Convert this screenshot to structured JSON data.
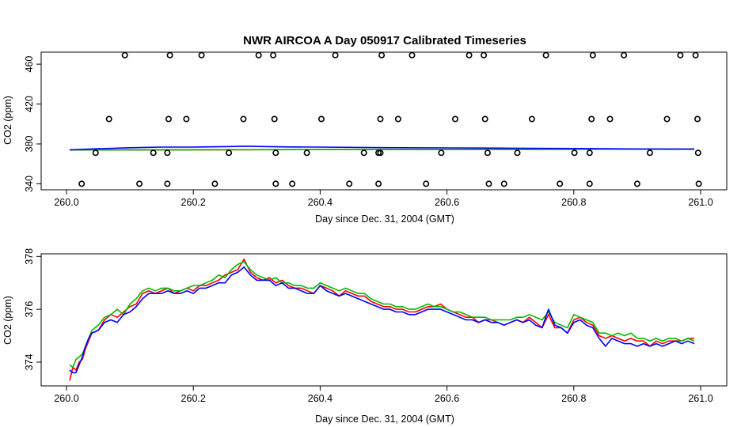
{
  "chart_data": [
    {
      "type": "scatter",
      "title": "NWR AIRCOA A  Day 050917  Calibrated Timeseries",
      "xlabel": "Day since Dec. 31, 2004 (GMT)",
      "ylabel": "CO2 (ppm)",
      "xlim": [
        260.0,
        261.0
      ],
      "ylim": [
        334,
        472
      ],
      "x_ticks": [
        260.0,
        260.2,
        260.4,
        260.6,
        260.8,
        261.0
      ],
      "x_tick_labels": [
        "260.0",
        "260.2",
        "260.4",
        "260.6",
        "260.8",
        "261.0"
      ],
      "y_ticks": [
        340,
        380,
        420,
        460
      ],
      "y_tick_labels": [
        "340",
        "380",
        "420",
        "460"
      ],
      "points": [
        [
          260.092,
          469
        ],
        [
          260.163,
          469
        ],
        [
          260.213,
          469
        ],
        [
          260.303,
          469
        ],
        [
          260.326,
          469
        ],
        [
          260.424,
          469
        ],
        [
          260.497,
          469
        ],
        [
          260.545,
          469
        ],
        [
          260.635,
          469
        ],
        [
          260.658,
          469
        ],
        [
          260.756,
          469
        ],
        [
          260.83,
          469
        ],
        [
          260.879,
          469
        ],
        [
          260.968,
          469
        ],
        [
          260.992,
          469
        ],
        [
          260.067,
          405
        ],
        [
          260.161,
          405
        ],
        [
          260.189,
          405
        ],
        [
          260.279,
          405
        ],
        [
          260.328,
          405
        ],
        [
          260.402,
          405
        ],
        [
          260.495,
          405
        ],
        [
          260.523,
          405
        ],
        [
          260.613,
          405
        ],
        [
          260.66,
          405
        ],
        [
          260.734,
          405
        ],
        [
          260.828,
          405
        ],
        [
          260.857,
          405
        ],
        [
          260.947,
          405
        ],
        [
          260.995,
          405
        ],
        [
          260.046,
          371
        ],
        [
          260.137,
          371
        ],
        [
          260.159,
          371
        ],
        [
          260.256,
          371
        ],
        [
          260.33,
          371
        ],
        [
          260.379,
          371
        ],
        [
          260.469,
          371
        ],
        [
          260.492,
          371
        ],
        [
          260.495,
          371
        ],
        [
          260.591,
          371
        ],
        [
          260.664,
          371
        ],
        [
          260.711,
          371
        ],
        [
          260.801,
          371
        ],
        [
          260.825,
          371
        ],
        [
          260.92,
          371
        ],
        [
          260.996,
          371
        ],
        [
          260.024,
          340
        ],
        [
          260.115,
          340
        ],
        [
          260.159,
          340
        ],
        [
          260.234,
          340
        ],
        [
          260.33,
          340
        ],
        [
          260.356,
          340
        ],
        [
          260.446,
          340
        ],
        [
          260.492,
          340
        ],
        [
          260.567,
          340
        ],
        [
          260.666,
          340
        ],
        [
          260.69,
          340
        ],
        [
          260.778,
          340
        ],
        [
          260.825,
          340
        ],
        [
          260.9,
          340
        ],
        [
          260.997,
          340
        ]
      ],
      "series": [
        {
          "name": "red",
          "color": "#ff0000",
          "x": [
            260.005,
            260.99
          ],
          "values": [
            374.0,
            374.8
          ]
        },
        {
          "name": "green",
          "color": "#00bb00",
          "x": [
            260.005,
            260.99
          ],
          "values": [
            374.0,
            374.8
          ]
        },
        {
          "name": "blue",
          "color": "#0000ff",
          "x": [
            260.005,
            260.05,
            260.1,
            260.15,
            260.2,
            260.25,
            260.28,
            260.35,
            260.4,
            260.5,
            260.6,
            260.7,
            260.8,
            260.9,
            260.99
          ],
          "values": [
            374.0,
            375.2,
            376.2,
            376.8,
            376.8,
            377.3,
            377.7,
            377.0,
            376.8,
            376.3,
            376.0,
            375.7,
            375.4,
            374.9,
            374.8
          ]
        }
      ]
    },
    {
      "type": "line",
      "title": "",
      "xlabel": "Day since Dec. 31, 2004 (GMT)",
      "ylabel": "CO2 (ppm)",
      "xlim": [
        260.0,
        261.0
      ],
      "ylim": [
        373.1,
        378.1
      ],
      "x_ticks": [
        260.0,
        260.2,
        260.4,
        260.6,
        260.8,
        261.0
      ],
      "x_tick_labels": [
        "260.0",
        "260.2",
        "260.4",
        "260.6",
        "260.8",
        "261.0"
      ],
      "y_ticks": [
        374,
        376,
        378
      ],
      "y_tick_labels": [
        "374",
        "376",
        "378"
      ],
      "series": [
        {
          "name": "red",
          "color": "#ff0000",
          "x": [
            260.005,
            260.01,
            260.015,
            260.02,
            260.025,
            260.03,
            260.035,
            260.04,
            260.05,
            260.06,
            260.07,
            260.08,
            260.09,
            260.1,
            260.11,
            260.12,
            260.13,
            260.14,
            260.15,
            260.16,
            260.17,
            260.18,
            260.19,
            260.2,
            260.21,
            260.22,
            260.23,
            260.24,
            260.25,
            260.26,
            260.27,
            260.28,
            260.29,
            260.3,
            260.31,
            260.32,
            260.33,
            260.34,
            260.35,
            260.36,
            260.37,
            260.38,
            260.39,
            260.4,
            260.41,
            260.42,
            260.43,
            260.44,
            260.45,
            260.46,
            260.47,
            260.48,
            260.49,
            260.5,
            260.51,
            260.52,
            260.53,
            260.54,
            260.55,
            260.56,
            260.57,
            260.58,
            260.59,
            260.6,
            260.61,
            260.62,
            260.63,
            260.64,
            260.65,
            260.66,
            260.67,
            260.68,
            260.69,
            260.7,
            260.71,
            260.72,
            260.73,
            260.74,
            260.75,
            260.76,
            260.77,
            260.78,
            260.79,
            260.8,
            260.81,
            260.82,
            260.83,
            260.84,
            260.85,
            260.86,
            260.87,
            260.88,
            260.89,
            260.9,
            260.91,
            260.92,
            260.93,
            260.94,
            260.95,
            260.96,
            260.97,
            260.98,
            260.99
          ],
          "values": [
            373.3,
            373.8,
            373.7,
            374.0,
            374.1,
            374.5,
            374.8,
            375.1,
            375.2,
            375.6,
            375.8,
            375.7,
            375.9,
            376.1,
            376.2,
            376.6,
            376.7,
            376.6,
            376.7,
            376.8,
            376.6,
            376.7,
            376.8,
            376.7,
            376.9,
            376.9,
            377.0,
            377.1,
            377.3,
            377.4,
            377.5,
            377.9,
            377.4,
            377.2,
            377.1,
            377.2,
            377.0,
            377.1,
            376.9,
            376.8,
            376.8,
            376.7,
            376.6,
            376.9,
            376.8,
            376.7,
            376.5,
            376.7,
            376.6,
            376.5,
            376.5,
            376.3,
            376.2,
            376.1,
            376.1,
            376.0,
            376.0,
            375.9,
            375.9,
            376.0,
            376.1,
            376.1,
            376.2,
            376.0,
            375.9,
            375.8,
            375.7,
            375.7,
            375.5,
            375.6,
            375.6,
            375.5,
            375.4,
            375.5,
            375.6,
            375.5,
            375.7,
            375.5,
            375.3,
            375.8,
            375.3,
            375.3,
            375.1,
            375.6,
            375.7,
            375.5,
            375.4,
            375.0,
            374.9,
            375.0,
            374.9,
            374.8,
            374.9,
            374.8,
            374.8,
            374.6,
            374.8,
            374.7,
            374.8,
            374.8,
            374.8,
            374.9,
            374.9
          ]
        },
        {
          "name": "green",
          "color": "#00bb00",
          "x": [
            260.005,
            260.01,
            260.015,
            260.02,
            260.025,
            260.03,
            260.035,
            260.04,
            260.05,
            260.06,
            260.07,
            260.08,
            260.09,
            260.1,
            260.11,
            260.12,
            260.13,
            260.14,
            260.15,
            260.16,
            260.17,
            260.18,
            260.19,
            260.2,
            260.21,
            260.22,
            260.23,
            260.24,
            260.25,
            260.26,
            260.27,
            260.28,
            260.29,
            260.3,
            260.31,
            260.32,
            260.33,
            260.34,
            260.35,
            260.36,
            260.37,
            260.38,
            260.39,
            260.4,
            260.41,
            260.42,
            260.43,
            260.44,
            260.45,
            260.46,
            260.47,
            260.48,
            260.49,
            260.5,
            260.51,
            260.52,
            260.53,
            260.54,
            260.55,
            260.56,
            260.57,
            260.58,
            260.59,
            260.6,
            260.61,
            260.62,
            260.63,
            260.64,
            260.65,
            260.66,
            260.67,
            260.68,
            260.69,
            260.7,
            260.71,
            260.72,
            260.73,
            260.74,
            260.75,
            260.76,
            260.77,
            260.78,
            260.79,
            260.8,
            260.81,
            260.82,
            260.83,
            260.84,
            260.85,
            260.86,
            260.87,
            260.88,
            260.89,
            260.9,
            260.91,
            260.92,
            260.93,
            260.94,
            260.95,
            260.96,
            260.97,
            260.98,
            260.99
          ],
          "values": [
            373.9,
            373.8,
            374.1,
            374.2,
            374.3,
            374.6,
            374.9,
            375.2,
            375.4,
            375.7,
            375.8,
            376.0,
            375.8,
            376.2,
            376.4,
            376.7,
            376.8,
            376.7,
            376.8,
            376.8,
            376.7,
            376.7,
            376.8,
            376.9,
            376.9,
            377.0,
            377.1,
            377.3,
            377.2,
            377.5,
            377.7,
            377.8,
            377.5,
            377.3,
            377.2,
            377.1,
            377.2,
            377.0,
            377.0,
            376.9,
            376.9,
            376.8,
            376.8,
            377.0,
            376.9,
            376.8,
            376.7,
            376.8,
            376.7,
            376.6,
            376.6,
            376.4,
            376.3,
            376.2,
            376.2,
            376.1,
            376.1,
            376.0,
            376.0,
            376.1,
            376.2,
            376.1,
            376.1,
            376.0,
            375.9,
            375.9,
            375.8,
            375.7,
            375.7,
            375.7,
            375.6,
            375.6,
            375.6,
            375.6,
            375.7,
            375.7,
            375.8,
            375.7,
            375.6,
            375.9,
            375.5,
            375.4,
            375.3,
            375.8,
            375.7,
            375.6,
            375.5,
            375.1,
            375.1,
            375.0,
            375.1,
            375.0,
            375.1,
            374.9,
            374.9,
            374.8,
            374.9,
            374.8,
            374.9,
            374.9,
            374.8,
            374.9,
            374.8
          ]
        },
        {
          "name": "blue",
          "color": "#0000ff",
          "x": [
            260.005,
            260.01,
            260.015,
            260.02,
            260.025,
            260.03,
            260.035,
            260.04,
            260.05,
            260.06,
            260.07,
            260.08,
            260.09,
            260.1,
            260.11,
            260.12,
            260.13,
            260.14,
            260.15,
            260.16,
            260.17,
            260.18,
            260.19,
            260.2,
            260.21,
            260.22,
            260.23,
            260.24,
            260.25,
            260.26,
            260.27,
            260.28,
            260.29,
            260.3,
            260.31,
            260.32,
            260.33,
            260.34,
            260.35,
            260.36,
            260.37,
            260.38,
            260.39,
            260.4,
            260.41,
            260.42,
            260.43,
            260.44,
            260.45,
            260.46,
            260.47,
            260.48,
            260.49,
            260.5,
            260.51,
            260.52,
            260.53,
            260.54,
            260.55,
            260.56,
            260.57,
            260.58,
            260.59,
            260.6,
            260.61,
            260.62,
            260.63,
            260.64,
            260.65,
            260.66,
            260.67,
            260.68,
            260.69,
            260.7,
            260.71,
            260.72,
            260.73,
            260.74,
            260.75,
            260.76,
            260.77,
            260.78,
            260.79,
            260.8,
            260.81,
            260.82,
            260.83,
            260.84,
            260.85,
            260.86,
            260.87,
            260.88,
            260.89,
            260.9,
            260.91,
            260.92,
            260.93,
            260.94,
            260.95,
            260.96,
            260.97,
            260.98,
            260.99
          ],
          "values": [
            373.7,
            373.6,
            373.6,
            373.9,
            374.2,
            374.6,
            374.9,
            375.1,
            375.2,
            375.5,
            375.6,
            375.5,
            375.8,
            375.9,
            376.1,
            376.4,
            376.6,
            376.6,
            376.6,
            376.7,
            376.6,
            376.6,
            376.7,
            376.6,
            376.8,
            376.8,
            376.9,
            377.0,
            377.0,
            377.3,
            377.4,
            377.6,
            377.3,
            377.1,
            377.1,
            377.1,
            376.9,
            377.0,
            376.8,
            376.8,
            376.7,
            376.6,
            376.6,
            376.9,
            376.7,
            376.6,
            376.5,
            376.6,
            376.5,
            376.4,
            376.3,
            376.2,
            376.1,
            376.0,
            376.0,
            375.9,
            375.9,
            375.8,
            375.8,
            375.9,
            376.0,
            376.0,
            376.0,
            375.9,
            375.8,
            375.7,
            375.6,
            375.6,
            375.5,
            375.6,
            375.5,
            375.5,
            375.4,
            375.5,
            375.6,
            375.5,
            375.6,
            375.4,
            375.3,
            376.0,
            375.4,
            375.3,
            375.1,
            375.5,
            375.6,
            375.4,
            375.3,
            374.9,
            374.6,
            374.9,
            374.8,
            374.7,
            374.7,
            374.6,
            374.7,
            374.6,
            374.7,
            374.6,
            374.7,
            374.8,
            374.7,
            374.8,
            374.7
          ]
        }
      ]
    }
  ]
}
